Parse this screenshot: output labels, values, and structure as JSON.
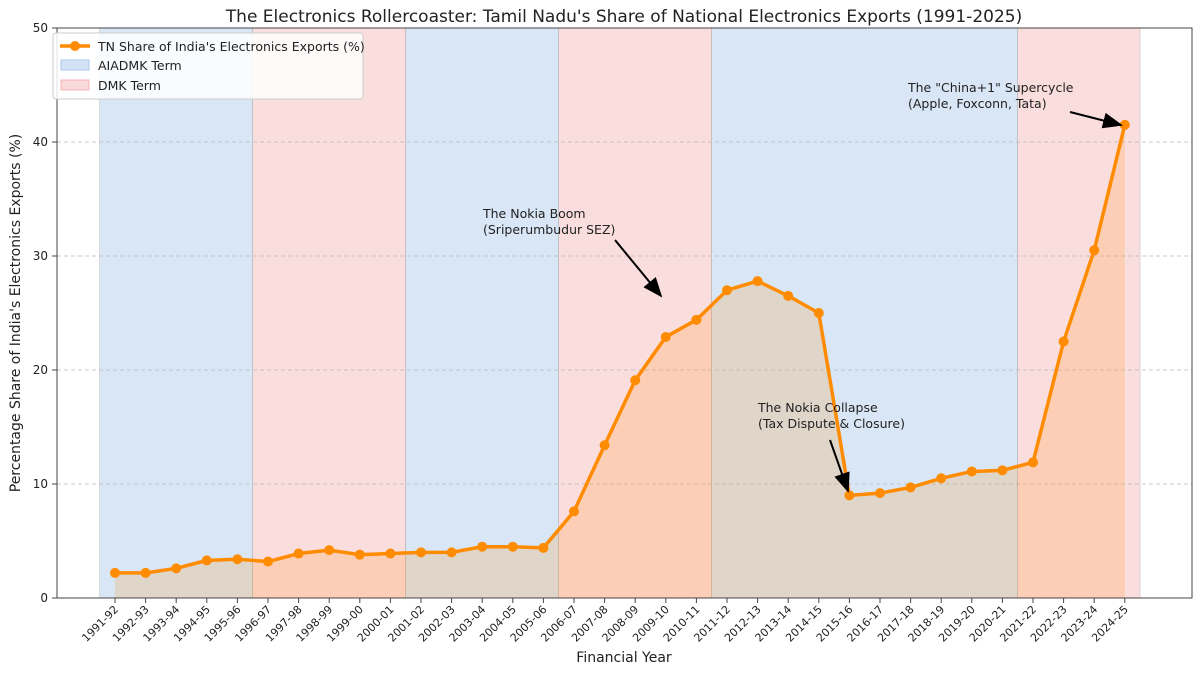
{
  "chart_data": {
    "type": "line",
    "title": "The Electronics Rollercoaster: Tamil Nadu's Share of National Electronics Exports (1991-2025)",
    "xlabel": "Financial Year",
    "ylabel": "Percentage Share of India's Electronics Exports (%)",
    "ylim": [
      0,
      50
    ],
    "yticks": [
      0,
      10,
      20,
      30,
      40,
      50
    ],
    "grid": "horizontal dashed",
    "legend_placement": "top-left",
    "categories": [
      "1991-92",
      "1992-93",
      "1993-94",
      "1994-95",
      "1995-96",
      "1996-97",
      "1997-98",
      "1998-99",
      "1999-00",
      "2000-01",
      "2001-02",
      "2002-03",
      "2003-04",
      "2004-05",
      "2005-06",
      "2006-07",
      "2007-08",
      "2008-09",
      "2009-10",
      "2010-11",
      "2011-12",
      "2012-13",
      "2013-14",
      "2014-15",
      "2015-16",
      "2016-17",
      "2017-18",
      "2018-19",
      "2019-20",
      "2020-21",
      "2021-22",
      "2022-23",
      "2023-24",
      "2024-25"
    ],
    "series": [
      {
        "name": "TN Share of India's Electronics Exports (%)",
        "color": "#ff8c00",
        "values": [
          2.2,
          2.2,
          2.6,
          3.3,
          3.4,
          3.2,
          3.9,
          4.2,
          3.8,
          3.9,
          4.0,
          4.0,
          4.5,
          4.5,
          4.4,
          7.6,
          13.4,
          19.1,
          22.9,
          24.4,
          27.0,
          27.8,
          26.5,
          25.0,
          9.0,
          9.2,
          9.7,
          10.5,
          11.1,
          11.2,
          11.9,
          22.5,
          30.5,
          41.5
        ]
      }
    ],
    "bands": [
      {
        "party": "AIADMK Term",
        "from": "1991-92",
        "to": "1995-96",
        "color": "#a8c8ec"
      },
      {
        "party": "DMK Term",
        "from": "1996-97",
        "to": "2000-01",
        "color": "#f4b4b4"
      },
      {
        "party": "AIADMK Term",
        "from": "2001-02",
        "to": "2005-06",
        "color": "#a8c8ec"
      },
      {
        "party": "DMK Term",
        "from": "2006-07",
        "to": "2010-11",
        "color": "#f4b4b4"
      },
      {
        "party": "AIADMK Term",
        "from": "2011-12",
        "to": "2020-21",
        "color": "#a8c8ec"
      },
      {
        "party": "DMK Term",
        "from": "2021-22",
        "to": "2024-25",
        "color": "#f4b4b4"
      }
    ],
    "legend": [
      "TN Share of India's Electronics Exports (%)",
      "AIADMK Term",
      "DMK Term"
    ],
    "annotations": [
      {
        "lines": [
          "The Nokia Boom",
          "(Sriperumbudur SEZ)"
        ],
        "target": "2009-10 region"
      },
      {
        "lines": [
          "The Nokia Collapse",
          "(Tax Dispute & Closure)"
        ],
        "target": "2015-16"
      },
      {
        "lines": [
          "The \"China+1\" Supercycle",
          "(Apple, Foxconn, Tata)"
        ],
        "target": "2024-25"
      }
    ]
  }
}
